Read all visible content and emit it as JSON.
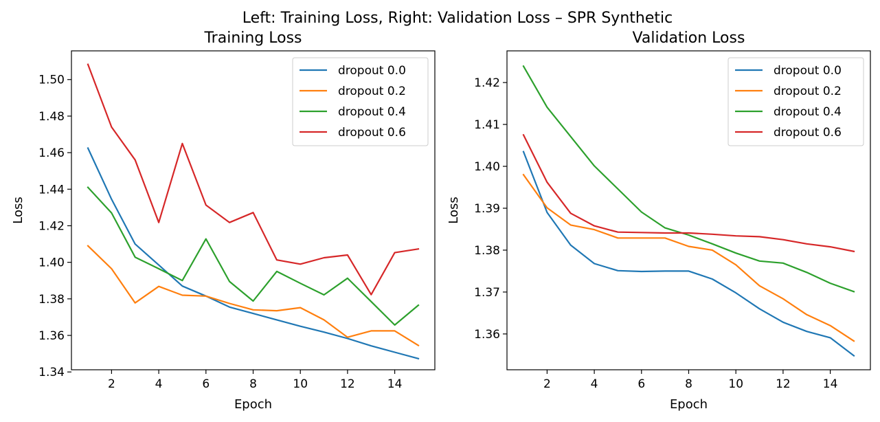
{
  "figure": {
    "suptitle": "Left: Training Loss, Right: Validation Loss – SPR Synthetic"
  },
  "chart_data": [
    {
      "type": "line",
      "title": "Training Loss",
      "xlabel": "Epoch",
      "ylabel": "Loss",
      "x": [
        1,
        2,
        3,
        4,
        5,
        6,
        7,
        8,
        9,
        10,
        11,
        12,
        13,
        14,
        15
      ],
      "xlim": [
        0.3,
        15.7
      ],
      "ylim": [
        1.3412,
        1.5157
      ],
      "xticks": [
        2,
        4,
        6,
        8,
        10,
        12,
        14
      ],
      "yticks": [
        1.34,
        1.36,
        1.38,
        1.4,
        1.42,
        1.44,
        1.46,
        1.48,
        1.5
      ],
      "ytick_labels": [
        "1.34",
        "1.36",
        "1.38",
        "1.40",
        "1.42",
        "1.44",
        "1.46",
        "1.48",
        "1.50"
      ],
      "legend_position": "upper right",
      "series": [
        {
          "name": "dropout 0.0",
          "color": "#1f77b4",
          "values": [
            1.4625,
            1.4345,
            1.41,
            1.3985,
            1.387,
            1.3815,
            1.3755,
            1.372,
            1.3685,
            1.365,
            1.3618,
            1.3583,
            1.3543,
            1.3508,
            1.3473
          ]
        },
        {
          "name": "dropout 0.2",
          "color": "#ff7f0e",
          "values": [
            1.409,
            1.3965,
            1.3778,
            1.3868,
            1.382,
            1.3815,
            1.3775,
            1.374,
            1.3735,
            1.3752,
            1.3685,
            1.359,
            1.3625,
            1.3625,
            1.3545
          ]
        },
        {
          "name": "dropout 0.4",
          "color": "#2ca02c",
          "values": [
            1.441,
            1.427,
            1.4028,
            1.3965,
            1.39,
            1.4128,
            1.3895,
            1.3788,
            1.395,
            1.3885,
            1.3822,
            1.3913,
            1.3785,
            1.3657,
            1.3765
          ]
        },
        {
          "name": "dropout 0.6",
          "color": "#d62728",
          "values": [
            1.5083,
            1.474,
            1.456,
            1.4218,
            1.465,
            1.4313,
            1.4218,
            1.4272,
            1.4013,
            1.399,
            1.4025,
            1.404,
            1.3823,
            1.4053,
            1.4073
          ]
        }
      ]
    },
    {
      "type": "line",
      "title": "Validation Loss",
      "xlabel": "Epoch",
      "ylabel": "Loss",
      "x": [
        1,
        2,
        3,
        4,
        5,
        6,
        7,
        8,
        9,
        10,
        11,
        12,
        13,
        14,
        15
      ],
      "xlim": [
        0.3,
        15.7
      ],
      "ylim": [
        1.35145,
        1.42756
      ],
      "xticks": [
        2,
        4,
        6,
        8,
        10,
        12,
        14
      ],
      "yticks": [
        1.36,
        1.37,
        1.38,
        1.39,
        1.4,
        1.41,
        1.42
      ],
      "ytick_labels": [
        "1.36",
        "1.37",
        "1.38",
        "1.39",
        "1.40",
        "1.41",
        "1.42"
      ],
      "legend_position": "upper right",
      "series": [
        {
          "name": "dropout 0.0",
          "color": "#1f77b4",
          "values": [
            1.4035,
            1.389,
            1.3812,
            1.3768,
            1.3751,
            1.3749,
            1.375,
            1.375,
            1.3731,
            1.3698,
            1.366,
            1.3628,
            1.3606,
            1.3591,
            1.3548
          ]
        },
        {
          "name": "dropout 0.2",
          "color": "#ff7f0e",
          "values": [
            1.398,
            1.3901,
            1.386,
            1.3849,
            1.3829,
            1.3829,
            1.3829,
            1.3809,
            1.38,
            1.3765,
            1.3715,
            1.3684,
            1.3646,
            1.362,
            1.3583
          ]
        },
        {
          "name": "dropout 0.4",
          "color": "#2ca02c",
          "values": [
            1.4239,
            1.4141,
            1.4071,
            1.4001,
            1.3946,
            1.3891,
            1.3853,
            1.3836,
            1.3815,
            1.3793,
            1.3774,
            1.3769,
            1.3747,
            1.3721,
            1.3701
          ]
        },
        {
          "name": "dropout 0.6",
          "color": "#d62728",
          "values": [
            1.4075,
            1.3962,
            1.3888,
            1.3858,
            1.3843,
            1.3842,
            1.3841,
            1.3841,
            1.3838,
            1.3834,
            1.3832,
            1.3825,
            1.3815,
            1.3808,
            1.3797
          ]
        }
      ]
    }
  ]
}
